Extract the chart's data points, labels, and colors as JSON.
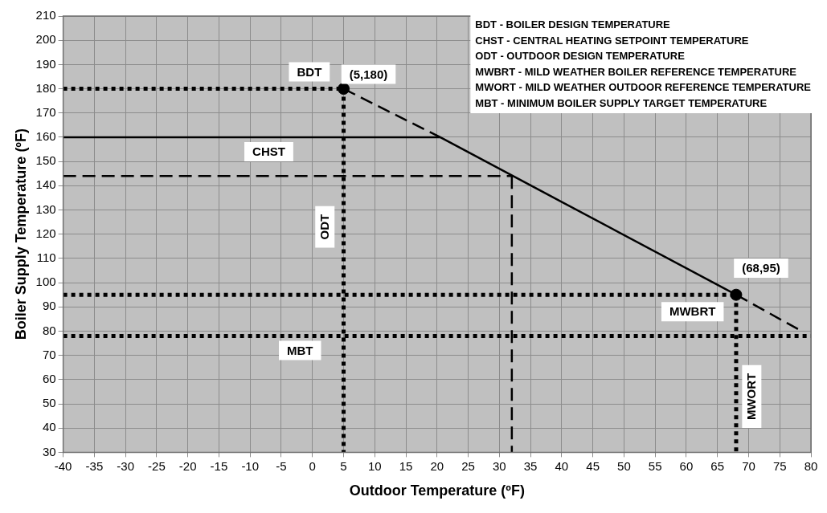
{
  "chart_data": {
    "type": "line",
    "xlabel": "Outdoor Temperature (ºF)",
    "ylabel": "Boiler Supply Temperature (ºF)",
    "xlim": [
      -40,
      80
    ],
    "xticks": [
      -40,
      -35,
      -30,
      -25,
      -20,
      -15,
      -10,
      -5,
      0,
      5,
      10,
      15,
      20,
      25,
      30,
      35,
      40,
      45,
      50,
      55,
      60,
      65,
      70,
      75,
      80
    ],
    "ylim": [
      30,
      210
    ],
    "yticks": [
      30,
      40,
      50,
      60,
      70,
      80,
      90,
      100,
      110,
      120,
      130,
      140,
      150,
      160,
      170,
      180,
      190,
      200,
      210
    ],
    "grid": true,
    "legend": false,
    "series": [
      {
        "color": "#000000",
        "line_style": "dashed",
        "x": [
          5,
          20.5
        ],
        "values": [
          180,
          160
        ]
      },
      {
        "color": "#000000",
        "line_style": "solid",
        "x": [
          20.5,
          68
        ],
        "values": [
          160,
          95
        ]
      },
      {
        "color": "#000000",
        "line_style": "dashed",
        "x": [
          68,
          78.5
        ],
        "values": [
          95,
          80
        ]
      },
      {
        "color": "#000000",
        "line_style": "dotted",
        "x": [
          -40,
          5
        ],
        "values": [
          180,
          180
        ]
      },
      {
        "color": "#000000",
        "line_style": "dotted",
        "x": [
          5,
          5
        ],
        "values": [
          180,
          30
        ]
      },
      {
        "color": "#000000",
        "line_style": "solid",
        "x": [
          -40,
          20.5
        ],
        "values": [
          160,
          160
        ]
      },
      {
        "color": "#000000",
        "line_style": "dashed",
        "x": [
          -40,
          32
        ],
        "values": [
          144,
          144
        ]
      },
      {
        "color": "#000000",
        "line_style": "dashed",
        "x": [
          32,
          32
        ],
        "values": [
          144,
          30
        ]
      },
      {
        "color": "#000000",
        "line_style": "dotted",
        "x": [
          -40,
          68
        ],
        "values": [
          95,
          95
        ]
      },
      {
        "color": "#000000",
        "line_style": "dotted",
        "x": [
          68,
          68
        ],
        "values": [
          95,
          30
        ]
      },
      {
        "color": "#000000",
        "line_style": "dotted",
        "x": [
          -40,
          80
        ],
        "values": [
          78,
          78
        ]
      },
      {
        "type": "scatter",
        "color": "#000000",
        "marker": "circle",
        "x": [
          5,
          68
        ],
        "values": [
          180,
          95
        ]
      }
    ],
    "annotations": [
      "BDT",
      "(5,180)",
      "CHST",
      "ODT",
      "(68,95)",
      "MWBRT",
      "MBT",
      "MWORT",
      "BDT - BOILER DESIGN TEMPERATURE",
      "CHST - CENTRAL HEATING SETPOINT TEMPERATURE",
      "ODT - OUTDOOR DESIGN TEMPERATURE",
      "MWBRT - MILD WEATHER BOILER REFERENCE TEMPERATURE",
      "MWORT - MILD WEATHER OUTDOOR REFERENCE TEMPERATURE",
      "MBT - MINIMUM BOILER SUPPLY TARGET TEMPERATURE"
    ]
  }
}
